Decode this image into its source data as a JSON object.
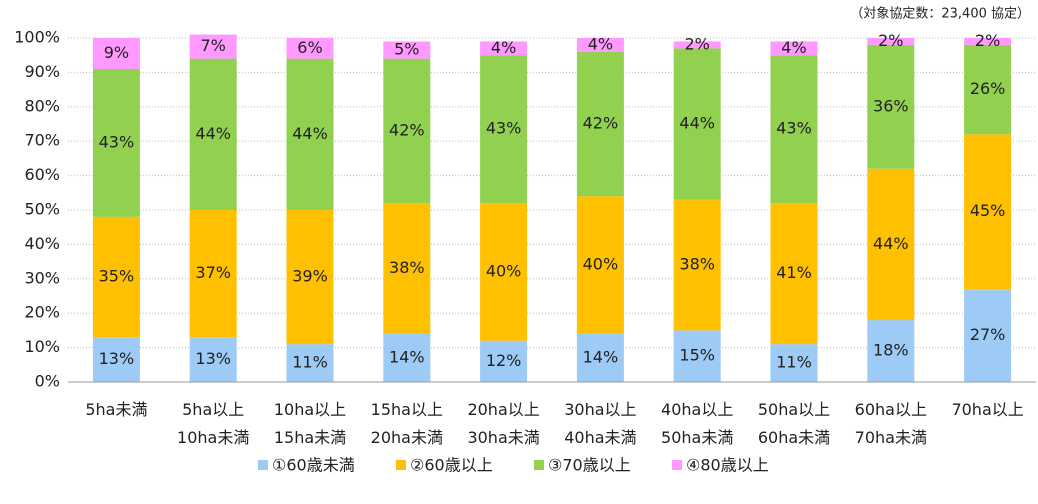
{
  "chart_data": {
    "type": "stacked_bar",
    "subtitle": "（対象協定数：23,400 協定）",
    "categories": [
      [
        "5ha未満"
      ],
      [
        "5ha以上",
        "10ha未満"
      ],
      [
        "10ha以上",
        "15ha未満"
      ],
      [
        "15ha以上",
        "20ha未満"
      ],
      [
        "20ha以上",
        "30ha未満"
      ],
      [
        "30ha以上",
        "40ha未満"
      ],
      [
        "40ha以上",
        "50ha未満"
      ],
      [
        "50ha以上",
        "60ha未満"
      ],
      [
        "60ha以上",
        "70ha未満"
      ],
      [
        "70ha以上"
      ]
    ],
    "series": [
      {
        "name": "①60歳未満",
        "color": "#9dcbf5",
        "values": [
          13,
          13,
          11,
          14,
          12,
          14,
          15,
          11,
          18,
          27
        ],
        "value_labels": [
          "13%",
          "13%",
          "11%",
          "14%",
          "12%",
          "14%",
          "15%",
          "11%",
          "18%",
          "27%"
        ]
      },
      {
        "name": "②60歳以上",
        "color": "#ffc000",
        "values": [
          35,
          37,
          39,
          38,
          40,
          40,
          38,
          41,
          44,
          45
        ],
        "value_labels": [
          "35%",
          "37%",
          "39%",
          "38%",
          "40%",
          "40%",
          "38%",
          "41%",
          "44%",
          "45%"
        ]
      },
      {
        "name": "③70歳以上",
        "color": "#92d050",
        "values": [
          43,
          44,
          44,
          42,
          43,
          42,
          44,
          43,
          36,
          26
        ],
        "value_labels": [
          "43%",
          "44%",
          "44%",
          "42%",
          "43%",
          "42%",
          "44%",
          "43%",
          "36%",
          "26%"
        ]
      },
      {
        "name": "④80歳以上",
        "color": "#ff99ff",
        "values": [
          9,
          7,
          6,
          5,
          4,
          4,
          2,
          4,
          2,
          2
        ],
        "value_labels": [
          "9%",
          "7%",
          "6%",
          "5%",
          "4%",
          "4%",
          "2%",
          "4%",
          "2%",
          "2%"
        ]
      }
    ],
    "ylim": [
      0,
      100
    ],
    "yticks": [
      {
        "value": 0,
        "label": "0%"
      },
      {
        "value": 10,
        "label": "10%"
      },
      {
        "value": 20,
        "label": "20%"
      },
      {
        "value": 30,
        "label": "30%"
      },
      {
        "value": 40,
        "label": "40%"
      },
      {
        "value": 50,
        "label": "50%"
      },
      {
        "value": 60,
        "label": "60%"
      },
      {
        "value": 70,
        "label": "70%"
      },
      {
        "value": 80,
        "label": "80%"
      },
      {
        "value": 90,
        "label": "90%"
      },
      {
        "value": 100,
        "label": "100%"
      }
    ],
    "grid": true,
    "legend": "bottom"
  }
}
